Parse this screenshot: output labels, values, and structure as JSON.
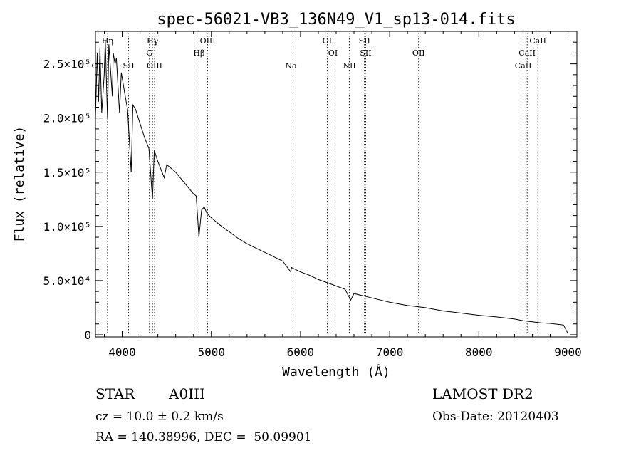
{
  "chart_data": {
    "type": "line",
    "title": "spec-56021-VB3_136N49_V1_sp13-014.fits",
    "xlabel": "Wavelength (Å)",
    "ylabel": "Flux (relative)",
    "xlim": [
      3700,
      9100
    ],
    "ylim": [
      -2000,
      280000
    ],
    "x_ticks": [
      4000,
      5000,
      6000,
      7000,
      8000,
      9000
    ],
    "y_ticks": [
      {
        "value": 0,
        "label": "0"
      },
      {
        "value": 50000,
        "label": "5.0×10⁴"
      },
      {
        "value": 100000,
        "label": "1.0×10⁵"
      },
      {
        "value": 150000,
        "label": "1.5×10⁵"
      },
      {
        "value": 200000,
        "label": "2.0×10⁵"
      },
      {
        "value": 250000,
        "label": "2.5×10⁵"
      }
    ],
    "grid": false,
    "series": [
      {
        "x": [
          3700,
          3720,
          3735,
          3750,
          3770,
          3798,
          3810,
          3835,
          3850,
          3889,
          3900,
          3920,
          3935,
          3970,
          3990,
          4010,
          4030,
          4060,
          4101,
          4120,
          4150,
          4200,
          4250,
          4300,
          4340,
          4360,
          4400,
          4471,
          4500,
          4600,
          4700,
          4800,
          4830,
          4861,
          4890,
          4920,
          4950,
          5000,
          5100,
          5200,
          5300,
          5400,
          5500,
          5600,
          5700,
          5800,
          5890,
          5900,
          6000,
          6100,
          6200,
          6300,
          6400,
          6500,
          6563,
          6600,
          6700,
          6800,
          6900,
          7000,
          7200,
          7400,
          7600,
          7800,
          8000,
          8200,
          8400,
          8500,
          8600,
          8700,
          8800,
          8900,
          8950,
          9000
        ],
        "y": [
          200000,
          260000,
          215000,
          265000,
          205000,
          240000,
          272000,
          200000,
          268000,
          220000,
          260000,
          250000,
          255000,
          205000,
          242000,
          232000,
          222000,
          208000,
          150000,
          212000,
          208000,
          195000,
          182000,
          172000,
          125000,
          170000,
          160000,
          145000,
          157000,
          150000,
          140000,
          130000,
          128000,
          90000,
          115000,
          118000,
          112000,
          108000,
          101000,
          95000,
          89000,
          84000,
          80000,
          76000,
          72000,
          68000,
          58000,
          62000,
          58000,
          55000,
          51000,
          48000,
          45000,
          42000,
          32000,
          38000,
          36000,
          34000,
          32000,
          30000,
          27000,
          25000,
          22000,
          20000,
          18000,
          16500,
          14500,
          13000,
          12000,
          11000,
          10500,
          9500,
          9000,
          1000
        ]
      }
    ],
    "line_markers": [
      {
        "label": "OII",
        "x": 3727,
        "row": 2
      },
      {
        "label": "Hη",
        "x": 3835,
        "row": 0
      },
      {
        "label": "SII",
        "x": 4072,
        "row": 2
      },
      {
        "label": "Hγ",
        "x": 4340,
        "row": 0
      },
      {
        "label": "G",
        "x": 4305,
        "row": 1
      },
      {
        "label": "OIII",
        "x": 4363,
        "row": 2
      },
      {
        "label": "Hβ",
        "x": 4861,
        "row": 1
      },
      {
        "label": "OIII",
        "x": 4959,
        "row": 0
      },
      {
        "label": "Na",
        "x": 5893,
        "row": 3
      },
      {
        "label": "OI",
        "x": 6300,
        "row": 0
      },
      {
        "label": "OI",
        "x": 6364,
        "row": 1
      },
      {
        "label": "NII",
        "x": 6548,
        "row": 3
      },
      {
        "label": "SII",
        "x": 6717,
        "row": 0
      },
      {
        "label": "SII",
        "x": 6731,
        "row": 1
      },
      {
        "label": "OII",
        "x": 7325,
        "row": 1
      },
      {
        "label": "CaII",
        "x": 8498,
        "row": 3
      },
      {
        "label": "CaII",
        "x": 8542,
        "row": 1
      },
      {
        "label": "CaII",
        "x": 8662,
        "row": 0
      }
    ]
  },
  "info": {
    "object_type": "STAR",
    "subclass": "A0III",
    "survey": "LAMOST DR2",
    "redshift": "cz = 10.0 ± 0.2 km/s",
    "obs_date": "Obs-Date: 20120403",
    "coords": "RA = 140.38996, DEC =  50.09901"
  }
}
